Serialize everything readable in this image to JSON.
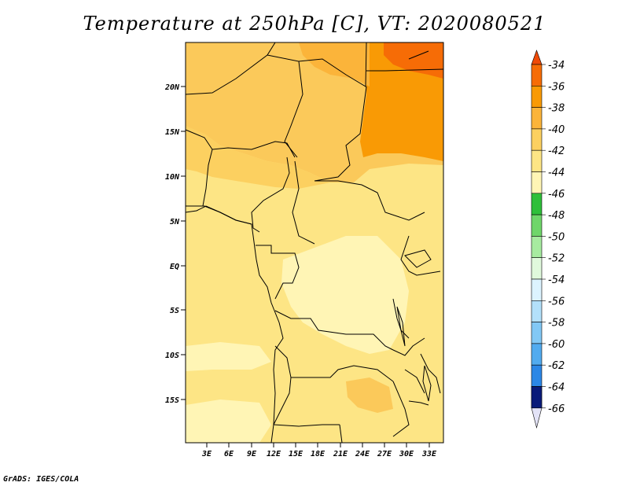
{
  "title": "Temperature at 250hPa [C], VT: 2020080521",
  "footer": "GrADS: IGES/COLA",
  "map": {
    "lat_labels": [
      "20N",
      "15N",
      "10N",
      "5N",
      "EQ",
      "5S",
      "10S",
      "15S"
    ],
    "lon_labels": [
      "3E",
      "6E",
      "9E",
      "12E",
      "15E",
      "18E",
      "21E",
      "24E",
      "27E",
      "30E",
      "33E"
    ],
    "ocean_color": "#fde585",
    "regions": [
      {
        "name": "warm-north-band",
        "color": "#fbc95a"
      },
      {
        "name": "hot-northeast",
        "color": "#f99a05"
      },
      {
        "name": "hottest-corner",
        "color": "#f66c06"
      },
      {
        "name": "cool-congo-basin",
        "color": "#fff5b5"
      },
      {
        "name": "warm-zambia-patch",
        "color": "#fbc95a"
      }
    ]
  },
  "colorbar": {
    "levels": [
      {
        "label": "-34",
        "color": "#f66c06"
      },
      {
        "label": "-36",
        "color": "#f99a05"
      },
      {
        "label": "-38",
        "color": "#fbb43a"
      },
      {
        "label": "-40",
        "color": "#fcd060"
      },
      {
        "label": "-42",
        "color": "#fde585"
      },
      {
        "label": "-44",
        "color": "#fff5b5"
      },
      {
        "label": "-46",
        "color": "#2fbf3a"
      },
      {
        "label": "-48",
        "color": "#6fd66a"
      },
      {
        "label": "-50",
        "color": "#a7eba0"
      },
      {
        "label": "-52",
        "color": "#e0f9dc"
      },
      {
        "label": "-54",
        "color": "#dcf3ff"
      },
      {
        "label": "-56",
        "color": "#b3e0fa"
      },
      {
        "label": "-58",
        "color": "#82c8f5"
      },
      {
        "label": "-60",
        "color": "#52abef"
      },
      {
        "label": "-62",
        "color": "#2c87e6"
      },
      {
        "label": "-64",
        "color": "#1b5fd3"
      },
      {
        "label": "-66",
        "color": "#0f3bb2"
      }
    ],
    "top_cap_color": "#ef4a08",
    "bottom_segment_color": "#0a1b7a",
    "bottom_cap_color": "#e3e3f7"
  }
}
